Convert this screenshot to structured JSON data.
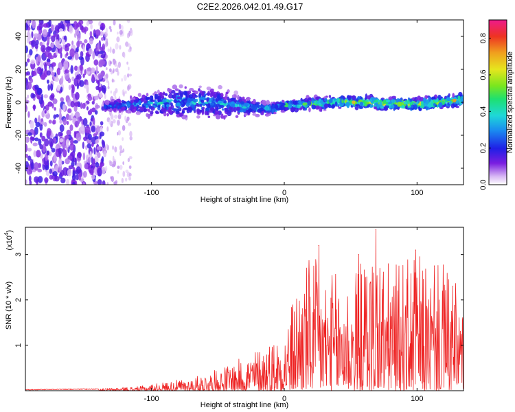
{
  "title": "C2E2.2026.042.01.49.G17",
  "chart_data": [
    {
      "type": "heatmap",
      "name": "spectrogram",
      "xlabel": "Height of straight line (km)",
      "ylabel": "Frequency (Hz)",
      "xlim": [
        -195,
        135
      ],
      "ylim": [
        -50,
        50
      ],
      "xticks": [
        -100,
        0,
        100
      ],
      "xtick_labels": [
        "-100",
        "0",
        "100"
      ],
      "yticks": [
        -40,
        -20,
        0,
        20,
        40
      ],
      "ytick_labels": [
        "-40",
        "-20",
        "0",
        "20",
        "40"
      ],
      "colorbar": {
        "label": "Normalized spectral amplitude",
        "range": [
          0.0,
          0.9
        ],
        "ticks": [
          0.0,
          0.2,
          0.4,
          0.6,
          0.8
        ],
        "tick_labels": [
          "0.0",
          "0.2",
          "0.4",
          "0.6",
          "0.8"
        ]
      },
      "ridge": {
        "x": [
          -135,
          -120,
          -100,
          -80,
          -60,
          -40,
          -25,
          -10,
          0,
          20,
          40,
          60,
          80,
          100,
          120,
          135
        ],
        "center_hz": [
          -2,
          -2,
          -1,
          0,
          0,
          -2,
          -3,
          -4,
          -2,
          -1,
          0,
          0,
          -1,
          -1,
          0,
          2
        ],
        "halfwidth_hz": [
          2,
          4,
          6,
          8,
          8,
          7,
          4,
          3,
          3,
          3,
          3,
          3,
          3,
          3,
          3,
          3
        ],
        "amplitude": [
          0.25,
          0.25,
          0.3,
          0.3,
          0.3,
          0.28,
          0.3,
          0.32,
          0.35,
          0.4,
          0.45,
          0.5,
          0.5,
          0.5,
          0.5,
          0.5
        ]
      },
      "noise_region": {
        "x_from": -195,
        "x_to": -135,
        "amplitude": 0.15
      },
      "scatter_region": {
        "x_from": -135,
        "x_to": -115,
        "amplitude": 0.05
      }
    },
    {
      "type": "line",
      "name": "snr",
      "xlabel": "Height of straight line (km)",
      "ylabel": "SNR (10 * v/v)",
      "y_scale_label": "(x10",
      "y_scale_exponent": "4",
      "y_scale_close": ")",
      "xlim": [
        -195,
        135
      ],
      "ylim": [
        0,
        3.6
      ],
      "xticks": [
        -100,
        0,
        100
      ],
      "xtick_labels": [
        "-100",
        "0",
        "100"
      ],
      "yticks": [
        1,
        2,
        3
      ],
      "ytick_labels": [
        "1",
        "2",
        "3"
      ],
      "color": "#ee2222",
      "envelope": {
        "x": [
          -195,
          -140,
          -110,
          -90,
          -70,
          -50,
          -30,
          -20,
          0,
          10,
          20,
          30,
          50,
          60,
          70,
          80,
          100,
          110,
          120,
          135
        ],
        "y": [
          0.03,
          0.05,
          0.1,
          0.2,
          0.3,
          0.5,
          0.8,
          1.0,
          1.4,
          2.6,
          3.2,
          2.8,
          2.7,
          3.1,
          3.5,
          2.9,
          3.2,
          2.8,
          3.0,
          2.2
        ]
      },
      "peaks": [
        {
          "x": 26,
          "y": 3.2
        },
        {
          "x": 56,
          "y": 3.0
        },
        {
          "x": 69,
          "y": 3.55
        },
        {
          "x": 99,
          "y": 3.1
        },
        {
          "x": 113,
          "y": 2.75
        },
        {
          "x": 127,
          "y": 2.3
        }
      ]
    }
  ]
}
